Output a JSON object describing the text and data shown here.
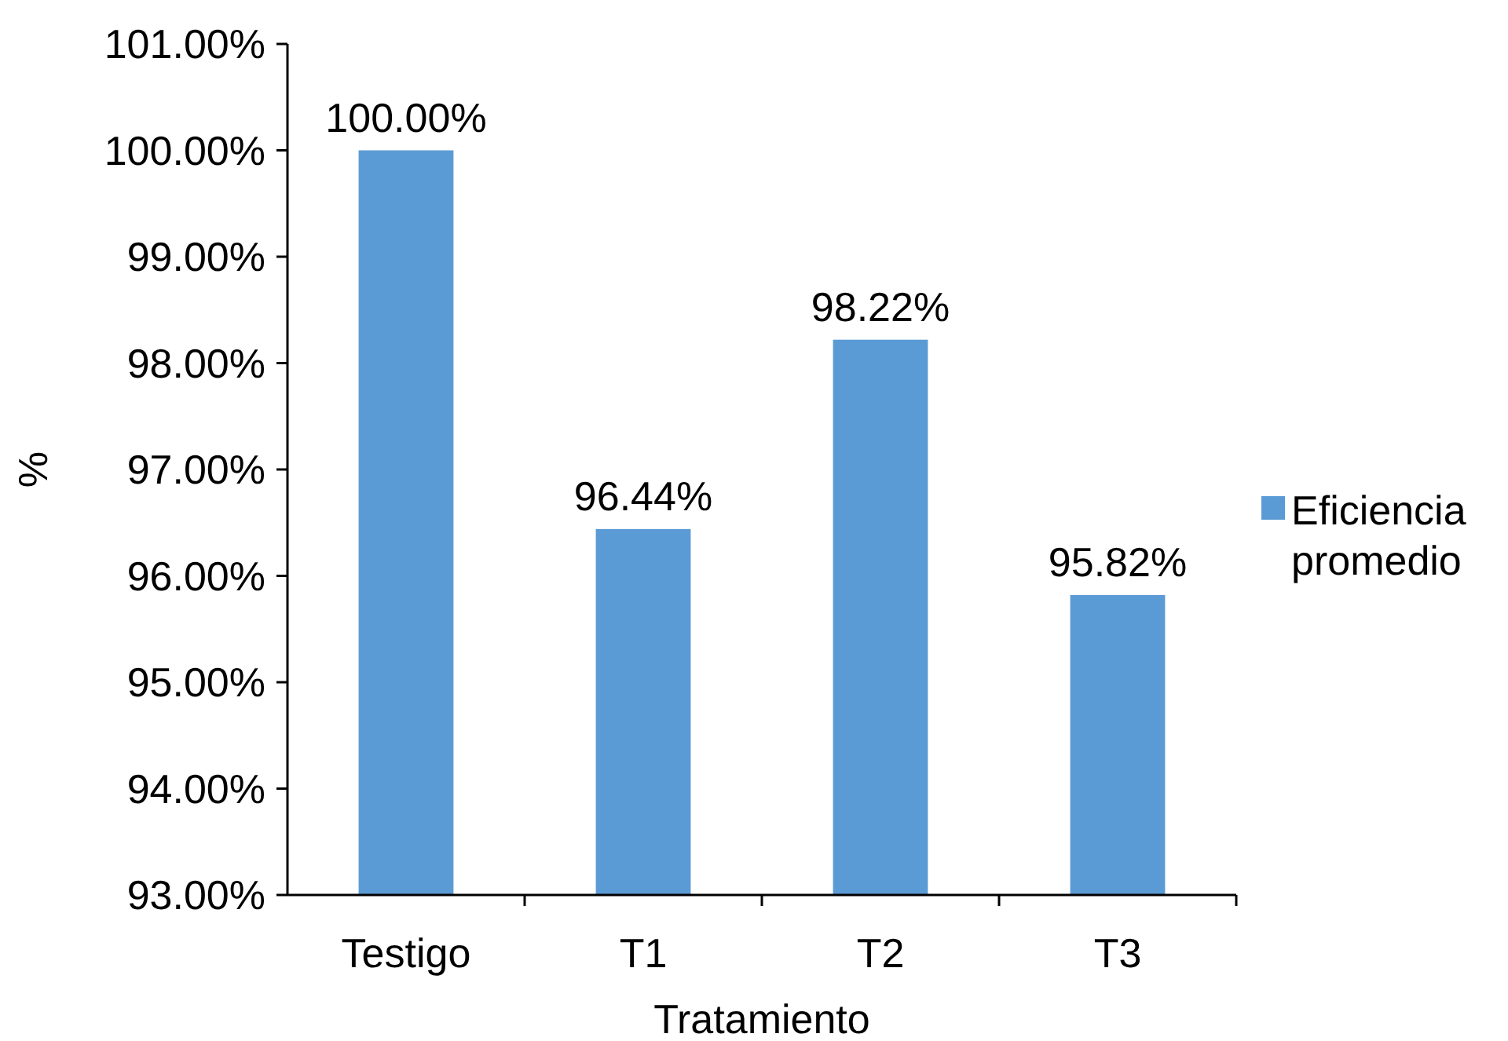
{
  "chart_data": {
    "type": "bar",
    "xlabel": "Tratamiento",
    "ylabel": "%",
    "categories": [
      "Testigo",
      "T1",
      "T2",
      "T3"
    ],
    "series": [
      {
        "name": "Eficiencia promedio",
        "color": "#5b9bd5",
        "values": [
          100,
          96.44,
          98.22,
          95.82
        ],
        "value_labels": [
          "100.00%",
          "96.44%",
          "98.22%",
          "95.82%"
        ]
      }
    ],
    "ylim": [
      93,
      101
    ],
    "yticks": [
      {
        "value": 93,
        "label": "93.00%"
      },
      {
        "value": 94,
        "label": "94.00%"
      },
      {
        "value": 95,
        "label": "95.00%"
      },
      {
        "value": 96,
        "label": "96.00%"
      },
      {
        "value": 97,
        "label": "97.00%"
      },
      {
        "value": 98,
        "label": "98.00%"
      },
      {
        "value": 99,
        "label": "99.00%"
      },
      {
        "value": 100,
        "label": "100.00%"
      },
      {
        "value": 101,
        "label": "101.00%"
      }
    ],
    "grid": false,
    "legend": "right"
  }
}
